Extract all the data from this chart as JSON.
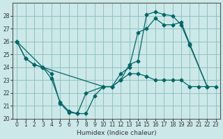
{
  "xlabel": "Humidex (Indice chaleur)",
  "bg_color": "#cce8e8",
  "line_color": "#006666",
  "grid_color": "#88bbbb",
  "xlim": [
    -0.5,
    23.5
  ],
  "ylim": [
    20,
    29
  ],
  "yticks": [
    20,
    21,
    22,
    23,
    24,
    25,
    26,
    27,
    28
  ],
  "xticks": [
    0,
    1,
    2,
    3,
    4,
    5,
    6,
    7,
    8,
    9,
    10,
    11,
    12,
    13,
    14,
    15,
    16,
    17,
    18,
    19,
    20,
    21,
    22,
    23
  ],
  "line1_x": [
    0,
    1,
    2,
    3,
    4,
    5,
    6,
    7,
    8,
    9,
    10,
    11,
    12,
    13,
    14,
    15,
    16,
    17,
    18,
    19,
    20,
    22
  ],
  "line1_y": [
    26.0,
    24.7,
    24.2,
    24.0,
    23.1,
    21.3,
    20.6,
    20.4,
    20.4,
    21.8,
    22.5,
    22.5,
    23.0,
    24.2,
    24.5,
    28.1,
    28.3,
    28.1,
    28.0,
    27.3,
    25.7,
    22.5
  ],
  "line2_x": [
    0,
    1,
    2,
    3,
    4,
    5,
    6,
    7,
    8,
    10,
    11,
    12,
    13,
    14,
    15,
    16,
    17,
    18,
    19,
    20,
    22
  ],
  "line2_y": [
    26.0,
    24.7,
    24.2,
    24.0,
    23.5,
    21.2,
    20.5,
    20.4,
    22.0,
    22.5,
    22.5,
    23.5,
    24.0,
    26.7,
    27.0,
    27.8,
    27.3,
    27.3,
    27.5,
    25.8,
    22.5
  ],
  "line3_x": [
    0,
    3,
    10,
    11,
    12,
    13,
    14,
    15,
    16,
    17,
    18,
    19,
    20,
    21,
    22,
    23
  ],
  "line3_y": [
    26.0,
    24.0,
    22.5,
    22.5,
    23.0,
    23.5,
    23.5,
    23.3,
    23.0,
    23.0,
    23.0,
    23.0,
    22.5,
    22.5,
    22.5,
    22.5
  ]
}
